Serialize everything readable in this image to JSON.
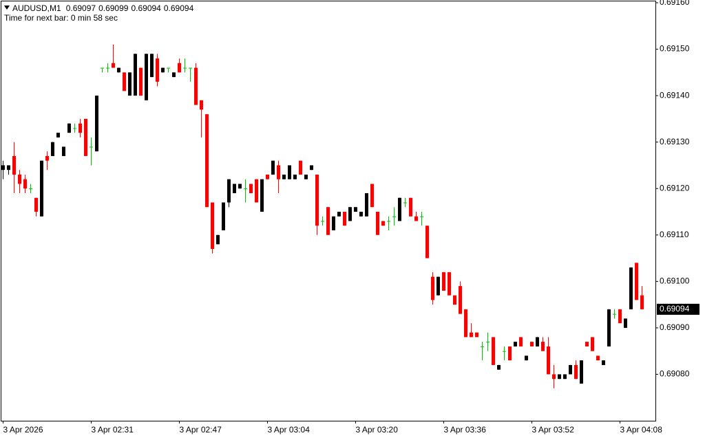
{
  "chart_data": {
    "type": "candlestick",
    "title": "AUDUSD,M1",
    "subtitle": "Time for next bar: 0 min 58 sec",
    "up_color": "#000000",
    "down_color": "#ff0000",
    "doji_color": "#00c000",
    "ylim": [
      0.6907,
      0.6916
    ],
    "yticks": [
      {
        "value": 0.6908,
        "label": "0.69080"
      },
      {
        "value": 0.6909,
        "label": "0.69090"
      },
      {
        "value": 0.691,
        "label": "0.69100"
      },
      {
        "value": 0.6911,
        "label": "0.69110"
      },
      {
        "value": 0.6912,
        "label": "0.69120"
      },
      {
        "value": 0.6913,
        "label": "0.69130"
      },
      {
        "value": 0.6914,
        "label": "0.69140"
      },
      {
        "value": 0.6915,
        "label": "0.69150"
      },
      {
        "value": 0.6916,
        "label": "0.69160"
      }
    ],
    "categories": [
      "3 Apr 2026",
      null,
      null,
      null,
      null,
      null,
      null,
      null,
      null,
      null,
      null,
      null,
      null,
      null,
      null,
      null,
      "3 Apr 02:31",
      null,
      null,
      null,
      null,
      null,
      null,
      null,
      null,
      null,
      null,
      null,
      null,
      null,
      null,
      null,
      "3 Apr 02:47",
      null,
      null,
      null,
      null,
      null,
      null,
      null,
      null,
      null,
      null,
      null,
      null,
      null,
      null,
      null,
      "3 Apr 03:04",
      null,
      null,
      null,
      null,
      null,
      null,
      null,
      null,
      null,
      null,
      null,
      null,
      null,
      null,
      null,
      "3 Apr 03:20",
      null,
      null,
      null,
      null,
      null,
      null,
      null,
      null,
      null,
      null,
      null,
      null,
      null,
      null,
      null,
      "3 Apr 03:36",
      null,
      null,
      null,
      null,
      null,
      null,
      null,
      null,
      null,
      null,
      null,
      null,
      null,
      null,
      null,
      "3 Apr 03:52",
      null,
      null,
      null,
      null,
      null,
      null,
      null,
      null,
      null,
      null,
      null,
      null,
      null,
      null,
      null,
      "3 Apr 04:08",
      null,
      null,
      null,
      null
    ],
    "ohlc": [
      [
        0.69124,
        0.69126,
        0.69122,
        0.69125
      ],
      [
        0.69124,
        0.69125,
        0.69123,
        0.69125
      ],
      [
        0.69127,
        0.6913,
        0.69119,
        0.69123
      ],
      [
        0.69123,
        0.69124,
        0.69119,
        0.69121
      ],
      [
        0.69122,
        0.69123,
        0.69119,
        0.6912
      ],
      [
        0.6912,
        0.69121,
        0.69119,
        0.6912
      ],
      [
        0.69118,
        0.69118,
        0.69114,
        0.69115
      ],
      [
        0.69114,
        0.69126,
        0.69114,
        0.69126
      ],
      [
        0.69127,
        0.69128,
        0.69124,
        0.69126
      ],
      [
        0.69127,
        0.6913,
        0.69127,
        0.6913
      ],
      [
        0.69131,
        0.69132,
        0.69131,
        0.69132
      ],
      [
        0.69127,
        0.69129,
        0.69127,
        0.69129
      ],
      [
        0.69132,
        0.69134,
        0.69132,
        0.69134
      ],
      [
        0.69133,
        0.69134,
        0.69132,
        0.69133
      ],
      [
        0.69134,
        0.69135,
        0.69131,
        0.69132
      ],
      [
        0.69135,
        0.69135,
        0.69127,
        0.69127
      ],
      [
        0.69129,
        0.69131,
        0.69125,
        0.69129
      ],
      [
        0.69128,
        0.6914,
        0.69128,
        0.6914
      ],
      [
        0.69146,
        0.69146,
        0.69145,
        0.69146
      ],
      [
        0.69146,
        0.69147,
        0.69145,
        0.69146
      ],
      [
        0.69147,
        0.69151,
        0.69146,
        0.69146
      ],
      [
        0.69145,
        0.69146,
        0.69145,
        0.69146
      ],
      [
        0.69145,
        0.69145,
        0.69141,
        0.69141
      ],
      [
        0.6914,
        0.69145,
        0.6914,
        0.69145
      ],
      [
        0.6914,
        0.69149,
        0.6914,
        0.69149
      ],
      [
        0.69146,
        0.69146,
        0.6914,
        0.6914
      ],
      [
        0.69139,
        0.69149,
        0.69139,
        0.69149
      ],
      [
        0.69144,
        0.69149,
        0.69144,
        0.69149
      ],
      [
        0.69148,
        0.69149,
        0.69142,
        0.69143
      ],
      [
        0.69145,
        0.69146,
        0.69145,
        0.69146
      ],
      [
        0.69146,
        0.69146,
        0.69145,
        0.69146
      ],
      [
        0.69144,
        0.69145,
        0.69144,
        0.69145
      ],
      [
        0.69147,
        0.69148,
        0.69145,
        0.69145
      ],
      [
        0.69146,
        0.69148,
        0.69145,
        0.69146
      ],
      [
        0.69146,
        0.69146,
        0.69143,
        0.69146
      ],
      [
        0.69146,
        0.69147,
        0.69138,
        0.69138
      ],
      [
        0.69139,
        0.69139,
        0.69131,
        0.69137
      ],
      [
        0.69136,
        0.69136,
        0.69116,
        0.69116
      ],
      [
        0.69117,
        0.69117,
        0.69106,
        0.69107
      ],
      [
        0.69108,
        0.6911,
        0.69108,
        0.6911
      ],
      [
        0.69111,
        0.69117,
        0.69111,
        0.69117
      ],
      [
        0.69117,
        0.69122,
        0.69116,
        0.69122
      ],
      [
        0.69119,
        0.69121,
        0.69119,
        0.69121
      ],
      [
        0.6912,
        0.69121,
        0.6912,
        0.69121
      ],
      [
        0.6912,
        0.69122,
        0.69117,
        0.6912
      ],
      [
        0.69121,
        0.69121,
        0.69119,
        0.69119
      ],
      [
        0.69122,
        0.69122,
        0.69117,
        0.69117
      ],
      [
        0.69115,
        0.69122,
        0.69115,
        0.69122
      ],
      [
        0.69123,
        0.69123,
        0.69122,
        0.69122
      ],
      [
        0.69123,
        0.69126,
        0.69123,
        0.69126
      ],
      [
        0.69125,
        0.69126,
        0.69119,
        0.69122
      ],
      [
        0.69122,
        0.69123,
        0.69122,
        0.69123
      ],
      [
        0.69122,
        0.69125,
        0.69122,
        0.69125
      ],
      [
        0.69122,
        0.69123,
        0.69122,
        0.69123
      ],
      [
        0.69126,
        0.69126,
        0.69123,
        0.69123
      ],
      [
        0.69122,
        0.69123,
        0.69122,
        0.69123
      ],
      [
        0.69124,
        0.69125,
        0.69124,
        0.69125
      ],
      [
        0.69123,
        0.69123,
        0.6911,
        0.69112
      ],
      [
        0.69113,
        0.69114,
        0.69112,
        0.69113
      ],
      [
        0.69116,
        0.69116,
        0.6911,
        0.6911
      ],
      [
        0.69111,
        0.69114,
        0.69111,
        0.69114
      ],
      [
        0.69114,
        0.69115,
        0.69114,
        0.69115
      ],
      [
        0.69115,
        0.69115,
        0.69112,
        0.69112
      ],
      [
        0.69113,
        0.69116,
        0.69113,
        0.69116
      ],
      [
        0.69115,
        0.69116,
        0.69115,
        0.69116
      ],
      [
        0.69114,
        0.69115,
        0.69114,
        0.69115
      ],
      [
        0.69114,
        0.69119,
        0.69114,
        0.69119
      ],
      [
        0.69121,
        0.69121,
        0.69116,
        0.69116
      ],
      [
        0.69115,
        0.69115,
        0.6911,
        0.6911
      ],
      [
        0.69113,
        0.69113,
        0.69112,
        0.69112
      ],
      [
        0.69113,
        0.69114,
        0.69111,
        0.69113
      ],
      [
        0.69114,
        0.69116,
        0.69112,
        0.69114
      ],
      [
        0.69113,
        0.69118,
        0.69113,
        0.69118
      ],
      [
        0.69117,
        0.69118,
        0.69116,
        0.69117
      ],
      [
        0.69118,
        0.69118,
        0.69114,
        0.69114
      ],
      [
        0.69114,
        0.69115,
        0.69113,
        0.69113
      ],
      [
        0.69114,
        0.69115,
        0.69112,
        0.69114
      ],
      [
        0.69112,
        0.69112,
        0.69105,
        0.69105
      ],
      [
        0.69101,
        0.69102,
        0.69095,
        0.69096
      ],
      [
        0.69097,
        0.69101,
        0.69097,
        0.69101
      ],
      [
        0.69102,
        0.69102,
        0.69098,
        0.69098
      ],
      [
        0.69102,
        0.69102,
        0.69097,
        0.69097
      ],
      [
        0.69097,
        0.69097,
        0.69095,
        0.69095
      ],
      [
        0.69099,
        0.691,
        0.69093,
        0.69093
      ],
      [
        0.69094,
        0.69094,
        0.69088,
        0.69088
      ],
      [
        0.69089,
        0.69091,
        0.69088,
        0.69088
      ],
      [
        0.69089,
        0.69089,
        0.69088,
        0.69088
      ],
      [
        0.69086,
        0.69087,
        0.69083,
        0.69086
      ],
      [
        0.69087,
        0.69089,
        0.69085,
        0.69087
      ],
      [
        0.69088,
        0.69088,
        0.69082,
        0.69082
      ],
      [
        0.69081,
        0.69082,
        0.69081,
        0.69082
      ],
      [
        0.69085,
        0.69086,
        0.69083,
        0.69085
      ],
      [
        0.69086,
        0.69086,
        0.69083,
        0.69083
      ],
      [
        0.69086,
        0.69087,
        0.69086,
        0.69087
      ],
      [
        0.69088,
        0.69088,
        0.69086,
        0.69086
      ],
      [
        0.69083,
        0.69084,
        0.69083,
        0.69084
      ],
      [
        0.69087,
        0.69087,
        0.69086,
        0.69086
      ],
      [
        0.69086,
        0.69088,
        0.69086,
        0.69088
      ],
      [
        0.69087,
        0.69088,
        0.69085,
        0.69085
      ],
      [
        0.69086,
        0.69088,
        0.6908,
        0.6908
      ],
      [
        0.6908,
        0.69082,
        0.69077,
        0.69079
      ],
      [
        0.69079,
        0.6908,
        0.69079,
        0.6908
      ],
      [
        0.69079,
        0.6908,
        0.69079,
        0.6908
      ],
      [
        0.6908,
        0.69082,
        0.6908,
        0.69082
      ],
      [
        0.69082,
        0.69083,
        0.69079,
        0.69079
      ],
      [
        0.69078,
        0.69083,
        0.69078,
        0.69083
      ],
      [
        0.69087,
        0.69087,
        0.69086,
        0.69086
      ],
      [
        0.69088,
        0.69088,
        0.69085,
        0.69085
      ],
      [
        0.69084,
        0.69084,
        0.69083,
        0.69083
      ],
      [
        0.69082,
        0.69083,
        0.69082,
        0.69083
      ],
      [
        0.69086,
        0.69094,
        0.69086,
        0.69094
      ],
      [
        0.69093,
        0.69094,
        0.69092,
        0.69093
      ],
      [
        0.69094,
        0.69094,
        0.69091,
        0.69091
      ],
      [
        0.6909,
        0.69092,
        0.6909,
        0.69092
      ],
      [
        0.69094,
        0.69103,
        0.69094,
        0.69103
      ],
      [
        0.69104,
        0.69104,
        0.69096,
        0.69096
      ],
      [
        0.69097,
        0.69099,
        0.69094,
        0.69094
      ]
    ]
  }
}
